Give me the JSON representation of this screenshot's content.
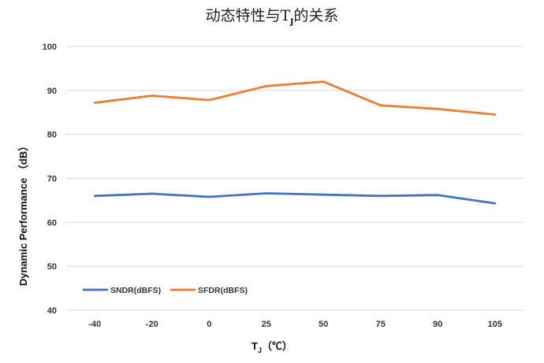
{
  "chart_data": {
    "type": "line",
    "title": {
      "pre": "动态特性与T",
      "sub": "J",
      "post": "的关系"
    },
    "xlabel": {
      "main": "T",
      "sub": "J",
      "unit": "（℃）"
    },
    "ylabel": "Dynamic Performance （dB）",
    "categories": [
      "-40",
      "-20",
      "0",
      "25",
      "50",
      "75",
      "90",
      "105"
    ],
    "ylim": [
      40,
      100
    ],
    "yticks": [
      40,
      50,
      60,
      70,
      80,
      90,
      100
    ],
    "grid": true,
    "legend_position": "bottom-left",
    "series": [
      {
        "name": "SNDR(dBFS)",
        "color": "#4472c4",
        "values": [
          66.0,
          66.5,
          65.8,
          66.6,
          66.3,
          66.0,
          66.2,
          64.3
        ]
      },
      {
        "name": "SFDR(dBFS)",
        "color": "#ed7d31",
        "values": [
          87.2,
          88.8,
          87.8,
          91.0,
          92.0,
          86.6,
          85.8,
          84.5
        ]
      }
    ]
  }
}
